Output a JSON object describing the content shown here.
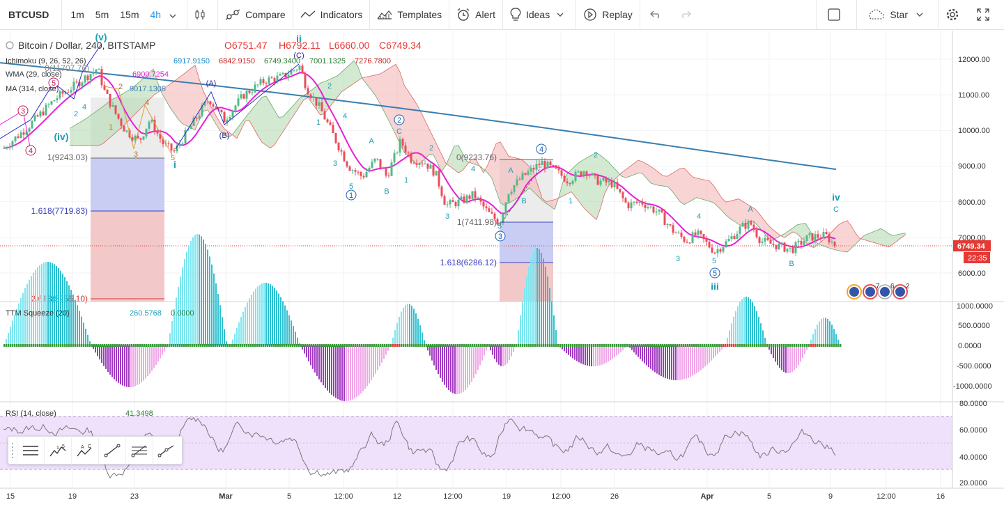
{
  "toolbar": {
    "symbol": "BTCUSD",
    "intervals": [
      "1m",
      "5m",
      "15m",
      "4h"
    ],
    "active_interval": "4h",
    "compare": "Compare",
    "indicators": "Indicators",
    "templates": "Templates",
    "alert": "Alert",
    "ideas": "Ideas",
    "replay": "Replay",
    "star": "Star"
  },
  "legend": {
    "title": "Bitcoin / Dollar, 240, BITSTAMP",
    "o": "O6751.47",
    "h": "H6792.11",
    "l": "L6660.00",
    "c": "C6749.34",
    "ichimoku_label": "Ichimoku (9, 26, 52, 26)",
    "ichimoku_values": [
      "6917.9150",
      "6842.9150",
      "6749.3400",
      "7001.1325",
      "7276.7800"
    ],
    "wma_label": "WMA (29, close)",
    "wma_value": "6900.7254",
    "ma_label": "MA (314, close)",
    "ma_value": "9017.1305",
    "ttm_label": "TTM Squeeze (20)",
    "ttm_values": [
      "260.5768",
      "0.0000"
    ],
    "rsi_label": "RSI (14, close)",
    "rsi_value": "41.3498"
  },
  "price_axis": {
    "ticks": [
      "12000.00",
      "11000.00",
      "10000.00",
      "9000.00",
      "8000.00",
      "7000.00",
      "6000.00"
    ],
    "last_price": "6749.34",
    "countdown": "22:35"
  },
  "ttm_axis": {
    "ticks": [
      "1000.0000",
      "500.0000",
      "0.0000",
      "-500.0000",
      "-1000.0000"
    ]
  },
  "rsi_axis": {
    "ticks": [
      "80.0000",
      "60.0000",
      "40.0000",
      "20.0000"
    ]
  },
  "time_axis": {
    "ticks": [
      "15",
      "19",
      "23",
      "Mar",
      "5",
      "12:00",
      "12",
      "12:00",
      "19",
      "12:00",
      "26",
      "Apr",
      "5",
      "9",
      "12:00",
      "16"
    ]
  },
  "annotations": {
    "fib_left": [
      "1(9243.03)",
      "1.618(7719.83)",
      "2.618(5255.10)"
    ],
    "fib_right": [
      "0(9233.76)",
      "1(7411.98)",
      "1.618(6286.12)"
    ],
    "fib_partial": "0(11707.76)",
    "wave_big": [
      "(iv)",
      "(v)",
      "i",
      "ii",
      "iii",
      "iv"
    ],
    "wave_circ": [
      "1",
      "2",
      "3",
      "4",
      "5"
    ],
    "wave_circ_pink": [
      "3",
      "4",
      "5"
    ],
    "wave_abc": [
      "A",
      "B",
      "C",
      "(A)",
      "(B)",
      "(C)"
    ],
    "wave_nums": [
      "1",
      "2",
      "3",
      "4",
      "5"
    ],
    "event_counts": [
      "7",
      "6",
      "2"
    ]
  },
  "colors": {
    "up": "#53b987",
    "down": "#eb4d5c",
    "wma": "#e81fd8",
    "ma": "#3a7eb0",
    "cloud_up": "#b7dbb3",
    "cloud_down": "#f4b8b8",
    "wave_teal": "#1a9fb5",
    "fib_blue": "#3b3fbf",
    "rsi_band": "#efe0fb"
  }
}
